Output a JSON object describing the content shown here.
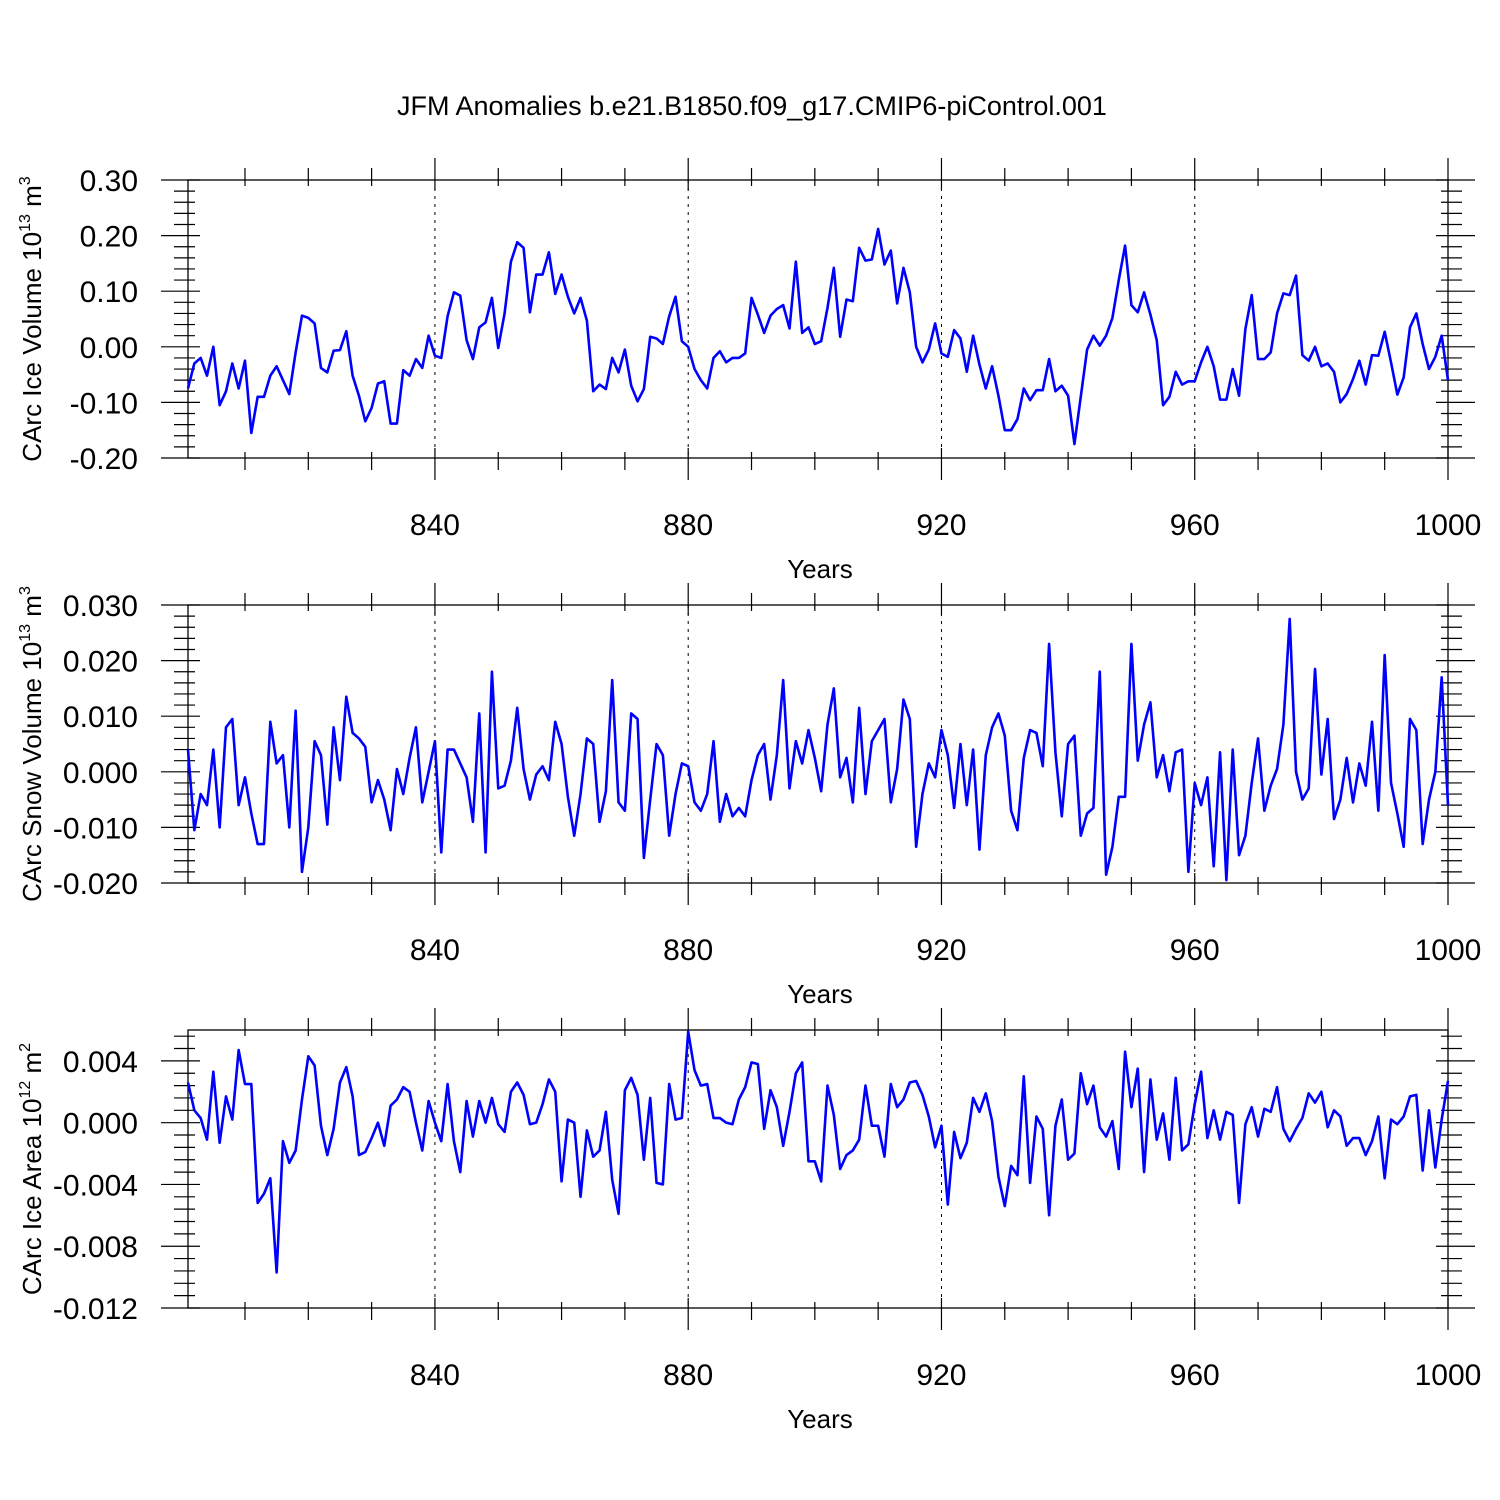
{
  "title": "JFM Anomalies b.e21.B1850.f09_g17.CMIP6-piControl.001",
  "colors": {
    "series": "#0000ff",
    "axes": "#000000"
  },
  "chart_data": [
    {
      "type": "line",
      "xlabel": "Years",
      "ylabel_main": "CArc Ice Volume 10",
      "ylabel_exp": "13",
      "ylabel_unit": " m",
      "ylabel_unit_exp": "3",
      "xlim": [
        801,
        1000
      ],
      "ylim": [
        -0.2,
        0.3
      ],
      "grid": "vertical dashed at major x ticks",
      "xticks": [
        840,
        880,
        920,
        960,
        1000
      ],
      "xtick_labels": [
        "840",
        "880",
        "920",
        "960",
        "1000"
      ],
      "yticks": [
        -0.2,
        -0.1,
        0.0,
        0.1,
        0.2,
        0.3
      ],
      "ytick_labels": [
        "-0.20",
        "-0.10",
        "0.00",
        "0.10",
        "0.20",
        "0.30"
      ],
      "x_start": 801,
      "x_step": 1,
      "values": [
        -0.075,
        -0.03,
        -0.02,
        -0.052,
        0.0,
        -0.105,
        -0.08,
        -0.03,
        -0.075,
        -0.025,
        -0.155,
        -0.09,
        -0.09,
        -0.052,
        -0.035,
        -0.06,
        -0.085,
        -0.01,
        0.056,
        0.052,
        0.042,
        -0.038,
        -0.046,
        -0.007,
        -0.006,
        0.028,
        -0.052,
        -0.088,
        -0.134,
        -0.11,
        -0.066,
        -0.062,
        -0.138,
        -0.138,
        -0.042,
        -0.052,
        -0.022,
        -0.038,
        0.02,
        -0.016,
        -0.02,
        0.055,
        0.098,
        0.092,
        0.012,
        -0.022,
        0.035,
        0.044,
        0.088,
        -0.002,
        0.06,
        0.153,
        0.188,
        0.178,
        0.062,
        0.13,
        0.13,
        0.17,
        0.095,
        0.13,
        0.09,
        0.06,
        0.088,
        0.047,
        -0.08,
        -0.068,
        -0.076,
        -0.02,
        -0.046,
        -0.005,
        -0.07,
        -0.098,
        -0.076,
        0.018,
        0.015,
        0.005,
        0.055,
        0.09,
        0.01,
        0.0,
        -0.04,
        -0.06,
        -0.075,
        -0.02,
        -0.008,
        -0.028,
        -0.02,
        -0.02,
        -0.012,
        0.088,
        0.058,
        0.025,
        0.056,
        0.068,
        0.075,
        0.033,
        0.153,
        0.025,
        0.035,
        0.005,
        0.01,
        0.07,
        0.142,
        0.018,
        0.085,
        0.082,
        0.178,
        0.155,
        0.157,
        0.212,
        0.148,
        0.173,
        0.078,
        0.142,
        0.098,
        0.0,
        -0.028,
        -0.005,
        0.042,
        -0.012,
        -0.018,
        0.03,
        0.015,
        -0.045,
        0.02,
        -0.032,
        -0.075,
        -0.035,
        -0.088,
        -0.15,
        -0.15,
        -0.13,
        -0.075,
        -0.096,
        -0.078,
        -0.078,
        -0.022,
        -0.08,
        -0.07,
        -0.088,
        -0.175,
        -0.09,
        -0.005,
        0.02,
        0.002,
        0.02,
        0.052,
        0.12,
        0.182,
        0.075,
        0.062,
        0.098,
        0.058,
        0.012,
        -0.105,
        -0.09,
        -0.045,
        -0.068,
        -0.062,
        -0.062,
        -0.028,
        0.0,
        -0.035,
        -0.095,
        -0.095,
        -0.04,
        -0.088,
        0.032,
        0.093,
        -0.022,
        -0.022,
        -0.01,
        0.06,
        0.096,
        0.093,
        0.128,
        -0.015,
        -0.025,
        0.0,
        -0.035,
        -0.03,
        -0.045,
        -0.1,
        -0.085,
        -0.058,
        -0.025,
        -0.068,
        -0.015,
        -0.016,
        0.027,
        -0.028,
        -0.086,
        -0.055,
        0.035,
        0.06,
        0.005,
        -0.04,
        -0.018,
        0.02,
        -0.06
      ]
    },
    {
      "type": "line",
      "xlabel": "Years",
      "ylabel_main": "CArc Snow Volume 10",
      "ylabel_exp": "13",
      "ylabel_unit": " m",
      "ylabel_unit_exp": "3",
      "xlim": [
        801,
        1000
      ],
      "ylim": [
        -0.02,
        0.03
      ],
      "grid": "vertical dashed at major x ticks",
      "xticks": [
        840,
        880,
        920,
        960,
        1000
      ],
      "xtick_labels": [
        "840",
        "880",
        "920",
        "960",
        "1000"
      ],
      "yticks": [
        -0.02,
        -0.01,
        0.0,
        0.01,
        0.02,
        0.03
      ],
      "ytick_labels": [
        "-0.020",
        "-0.010",
        "0.000",
        "0.010",
        "0.020",
        "0.030"
      ],
      "x_start": 801,
      "x_step": 1,
      "values": [
        0.004,
        -0.0105,
        -0.004,
        -0.006,
        0.004,
        -0.01,
        0.008,
        0.0095,
        -0.006,
        -0.001,
        -0.0075,
        -0.013,
        -0.013,
        0.009,
        0.0015,
        0.003,
        -0.01,
        0.011,
        -0.018,
        -0.01,
        0.0055,
        0.003,
        -0.0095,
        0.008,
        -0.0015,
        0.0135,
        0.007,
        0.006,
        0.0045,
        -0.0055,
        -0.0015,
        -0.005,
        -0.0105,
        0.0005,
        -0.004,
        0.0025,
        0.008,
        -0.0055,
        0.0,
        0.0055,
        -0.0145,
        0.004,
        0.004,
        0.0015,
        -0.001,
        -0.009,
        0.0105,
        -0.0145,
        0.018,
        -0.003,
        -0.0025,
        0.002,
        0.0115,
        0.0005,
        -0.005,
        -0.0005,
        0.001,
        -0.0015,
        0.009,
        0.005,
        -0.0045,
        -0.0115,
        -0.004,
        0.006,
        0.005,
        -0.009,
        -0.0035,
        0.0165,
        -0.0055,
        -0.007,
        0.0105,
        0.0095,
        -0.0155,
        -0.005,
        0.005,
        0.003,
        -0.0115,
        -0.004,
        0.0015,
        0.001,
        -0.0055,
        -0.007,
        -0.004,
        0.0055,
        -0.009,
        -0.004,
        -0.008,
        -0.0065,
        -0.008,
        -0.0015,
        0.003,
        0.005,
        -0.005,
        0.003,
        0.0165,
        -0.003,
        0.0055,
        0.0015,
        0.0075,
        0.0025,
        -0.0035,
        0.0085,
        0.015,
        -0.001,
        0.0025,
        -0.0055,
        0.0115,
        -0.004,
        0.0055,
        0.0075,
        0.0095,
        -0.0055,
        0.0005,
        0.013,
        0.0095,
        -0.0135,
        -0.004,
        0.0015,
        -0.001,
        0.0075,
        0.003,
        -0.0065,
        0.005,
        -0.006,
        0.004,
        -0.014,
        0.003,
        0.008,
        0.0105,
        0.0065,
        -0.007,
        -0.0105,
        0.0025,
        0.0075,
        0.007,
        0.001,
        0.023,
        0.0035,
        -0.008,
        0.005,
        0.0065,
        -0.0115,
        -0.0075,
        -0.0065,
        0.018,
        -0.0185,
        -0.0135,
        -0.0045,
        -0.0045,
        0.023,
        0.002,
        0.0085,
        0.0125,
        -0.001,
        0.003,
        -0.0035,
        0.0035,
        0.004,
        -0.018,
        -0.002,
        -0.006,
        -0.001,
        -0.017,
        0.0035,
        -0.0195,
        0.004,
        -0.015,
        -0.0115,
        -0.002,
        0.006,
        -0.007,
        -0.0025,
        0.0005,
        0.0085,
        0.0275,
        0.0,
        -0.005,
        -0.003,
        0.0185,
        -0.0005,
        0.0095,
        -0.0085,
        -0.005,
        0.0025,
        -0.0055,
        0.0015,
        -0.0025,
        0.009,
        -0.007,
        0.021,
        -0.002,
        -0.0075,
        -0.0135,
        0.0095,
        0.0075,
        -0.013,
        -0.005,
        0.0,
        0.017,
        -0.006
      ]
    },
    {
      "type": "line",
      "xlabel": "Years",
      "ylabel_main": "CArc Ice Area 10",
      "ylabel_exp": "12",
      "ylabel_unit": " m",
      "ylabel_unit_exp": "2",
      "xlim": [
        801,
        1000
      ],
      "ylim": [
        -0.012,
        0.006
      ],
      "grid": "vertical dashed at major x ticks",
      "xticks": [
        840,
        880,
        920,
        960,
        1000
      ],
      "xtick_labels": [
        "840",
        "880",
        "920",
        "960",
        "1000"
      ],
      "yticks": [
        -0.012,
        -0.008,
        -0.004,
        0.0,
        0.004
      ],
      "ytick_labels": [
        "-0.012",
        "-0.008",
        "-0.004",
        "0.000",
        "0.004"
      ],
      "x_start": 801,
      "x_step": 1,
      "values": [
        0.0026,
        0.0008,
        0.0003,
        -0.0011,
        0.0033,
        -0.0013,
        0.0017,
        0.0002,
        0.0047,
        0.0025,
        0.0025,
        -0.0052,
        -0.0046,
        -0.0036,
        -0.0097,
        -0.0012,
        -0.0026,
        -0.0018,
        0.0015,
        0.0043,
        0.0037,
        -0.0002,
        -0.0021,
        -0.0004,
        0.0026,
        0.0036,
        0.0017,
        -0.0021,
        -0.0019,
        -0.001,
        0.0,
        -0.0015,
        0.0011,
        0.0015,
        0.0023,
        0.002,
        0.0,
        -0.0018,
        0.0014,
        0.0,
        -0.0012,
        0.0025,
        -0.0012,
        -0.0032,
        0.0014,
        -0.0009,
        0.0014,
        0.0,
        0.0016,
        -0.0001,
        -0.0006,
        0.002,
        0.0026,
        0.0018,
        -0.0001,
        0.0,
        0.0012,
        0.0028,
        0.002,
        -0.0038,
        0.0002,
        0.0,
        -0.0048,
        -0.0005,
        -0.0022,
        -0.0018,
        0.0007,
        -0.0037,
        -0.0059,
        0.0021,
        0.0029,
        0.0018,
        -0.0024,
        0.0016,
        -0.0039,
        -0.004,
        0.0025,
        0.0002,
        0.0003,
        0.0059,
        0.0034,
        0.0024,
        0.0025,
        0.0003,
        0.0003,
        0.0,
        -0.0001,
        0.0015,
        0.0023,
        0.0039,
        0.0038,
        -0.0004,
        0.0021,
        0.001,
        -0.0015,
        0.0007,
        0.0032,
        0.0039,
        -0.0025,
        -0.0025,
        -0.0038,
        0.0024,
        0.0005,
        -0.003,
        -0.0021,
        -0.0018,
        -0.0011,
        0.0024,
        -0.0002,
        -0.0002,
        -0.0022,
        0.0025,
        0.001,
        0.0015,
        0.0026,
        0.0027,
        0.0018,
        0.0004,
        -0.0016,
        -0.0002,
        -0.0053,
        -0.0006,
        -0.0023,
        -0.0013,
        0.0016,
        0.0007,
        0.0019,
        0.0001,
        -0.0035,
        -0.0054,
        -0.0028,
        -0.0034,
        0.003,
        -0.0039,
        0.0004,
        -0.0004,
        -0.006,
        -0.0002,
        0.0015,
        -0.0024,
        -0.002,
        0.0032,
        0.0012,
        0.0024,
        -0.0003,
        -0.0009,
        0.0001,
        -0.003,
        0.0046,
        0.001,
        0.0035,
        -0.0032,
        0.0028,
        -0.0011,
        0.0006,
        -0.0024,
        0.0029,
        -0.0018,
        -0.0014,
        0.0012,
        0.0033,
        -0.001,
        0.0008,
        -0.0011,
        0.0007,
        0.0005,
        -0.0052,
        -0.0001,
        0.001,
        -0.0009,
        0.0009,
        0.0007,
        0.0023,
        -0.0004,
        -0.0012,
        -0.0004,
        0.0003,
        0.0019,
        0.0013,
        0.002,
        -0.0003,
        0.0008,
        0.0004,
        -0.0015,
        -0.001,
        -0.001,
        -0.0021,
        -0.0012,
        0.0004,
        -0.0036,
        0.0002,
        -0.0001,
        0.0004,
        0.0017,
        0.0018,
        -0.0031,
        0.0008,
        -0.0029,
        0.0002,
        0.0027
      ]
    }
  ]
}
